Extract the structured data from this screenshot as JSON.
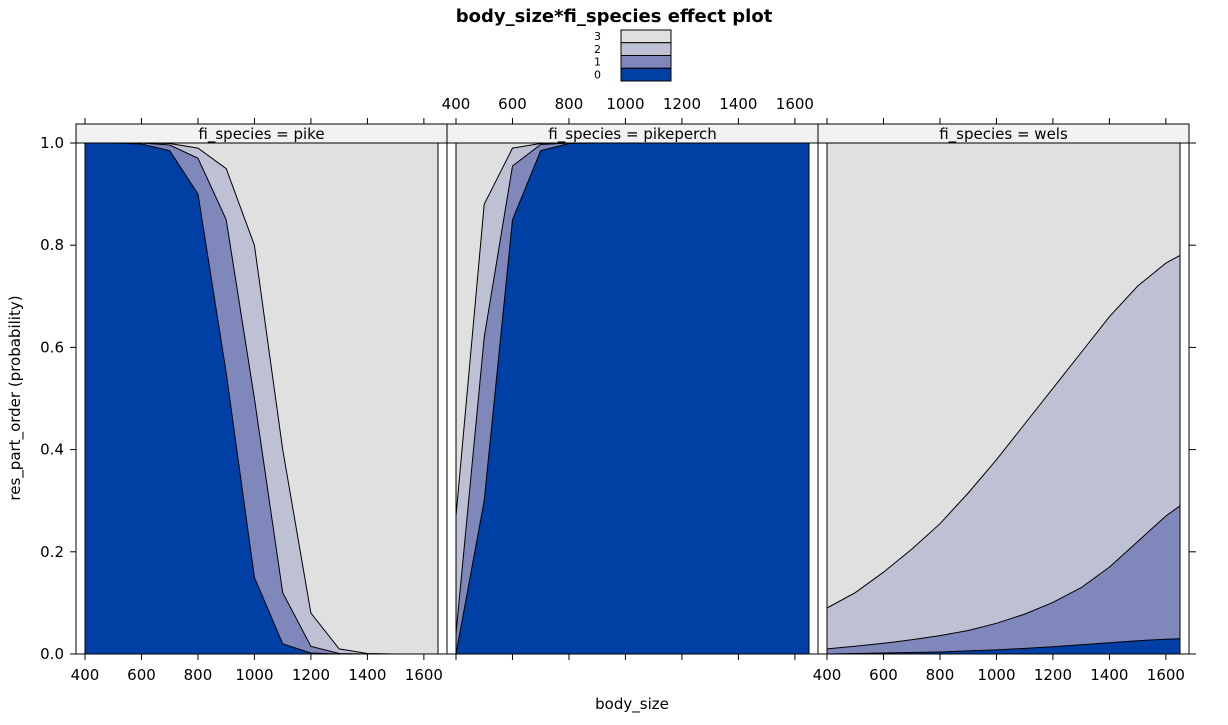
{
  "chart_data": {
    "type": "area",
    "title": "body_size*fi_species effect plot",
    "xlabel": "body_size",
    "ylabel": "res_part_order (probability)",
    "xlim": [
      370,
      1690
    ],
    "ylim": [
      0,
      1
    ],
    "x_ticks": [
      400,
      600,
      800,
      1000,
      1200,
      1400,
      1600
    ],
    "y_ticks": [
      0.0,
      0.2,
      0.4,
      0.6,
      0.8,
      1.0
    ],
    "y_tick_labels": [
      "0.0",
      "0.2",
      "0.4",
      "0.6",
      "0.8",
      "1.0"
    ],
    "stacked": true,
    "levels": [
      "0",
      "1",
      "2",
      "3"
    ],
    "legend": {
      "placement": "top-center",
      "entries": [
        {
          "label": "3",
          "color": "#e0e0e0"
        },
        {
          "label": "2",
          "color": "#bec1d4"
        },
        {
          "label": "1",
          "color": "#7f87bb"
        },
        {
          "label": "0",
          "color": "#0040a5"
        }
      ]
    },
    "x": [
      400,
      500,
      600,
      700,
      800,
      900,
      1000,
      1100,
      1200,
      1300,
      1400,
      1500,
      1600,
      1650
    ],
    "panels": [
      {
        "strip": "fi_species = pike",
        "cumulative": {
          "le0": [
            1.0,
            1.0,
            0.998,
            0.985,
            0.9,
            0.55,
            0.15,
            0.02,
            0.002,
            0.0,
            0.0,
            0.0,
            0.0,
            0.0
          ],
          "le1": [
            1.0,
            1.0,
            1.0,
            0.996,
            0.97,
            0.85,
            0.5,
            0.12,
            0.015,
            0.001,
            0.0,
            0.0,
            0.0,
            0.0
          ],
          "le2": [
            1.0,
            1.0,
            1.0,
            0.999,
            0.99,
            0.95,
            0.8,
            0.4,
            0.08,
            0.01,
            0.001,
            0.0,
            0.0,
            0.0
          ]
        }
      },
      {
        "strip": "fi_species = pikeperch",
        "cumulative": {
          "le0": [
            0.0,
            0.3,
            0.85,
            0.985,
            0.999,
            1.0,
            1.0,
            1.0,
            1.0,
            1.0,
            1.0,
            1.0,
            1.0,
            1.0
          ],
          "le1": [
            0.04,
            0.62,
            0.955,
            0.997,
            1.0,
            1.0,
            1.0,
            1.0,
            1.0,
            1.0,
            1.0,
            1.0,
            1.0,
            1.0
          ],
          "le2": [
            0.27,
            0.88,
            0.99,
            0.999,
            1.0,
            1.0,
            1.0,
            1.0,
            1.0,
            1.0,
            1.0,
            1.0,
            1.0,
            1.0
          ]
        }
      },
      {
        "strip": "fi_species = wels",
        "cumulative": {
          "le0": [
            0.0,
            0.001,
            0.002,
            0.003,
            0.004,
            0.006,
            0.008,
            0.011,
            0.014,
            0.018,
            0.022,
            0.026,
            0.029,
            0.03
          ],
          "le1": [
            0.01,
            0.015,
            0.021,
            0.028,
            0.036,
            0.046,
            0.06,
            0.078,
            0.101,
            0.13,
            0.17,
            0.22,
            0.27,
            0.29
          ],
          "le2": [
            0.09,
            0.12,
            0.16,
            0.205,
            0.255,
            0.315,
            0.38,
            0.45,
            0.52,
            0.59,
            0.66,
            0.72,
            0.765,
            0.78
          ]
        }
      }
    ]
  }
}
